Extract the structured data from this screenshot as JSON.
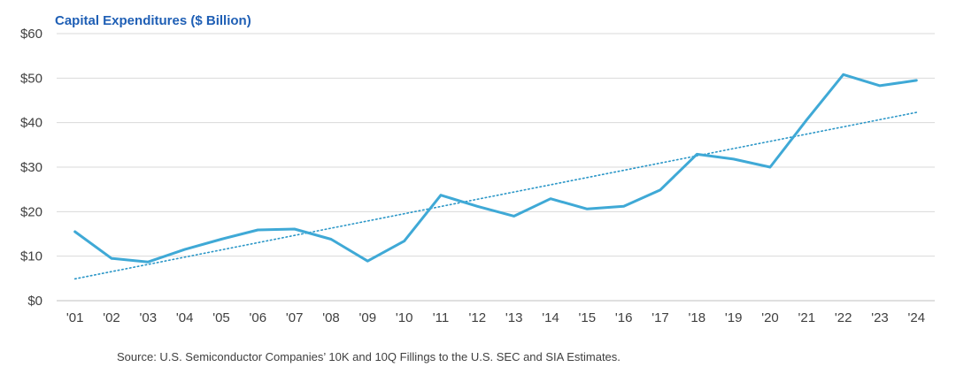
{
  "chart_data": {
    "type": "line",
    "title": "Capital Expenditures ($ Billion)",
    "source": "Source: U.S. Semiconductor Companies’ 10K and 10Q Fillings to the U.S. SEC and SIA Estimates.",
    "categories": [
      "'01",
      "'02",
      "'03",
      "'04",
      "'05",
      "'06",
      "'07",
      "'08",
      "'09",
      "'10",
      "'11",
      "'12",
      "'13",
      "'14",
      "'15",
      "'16",
      "'17",
      "'18",
      "'19",
      "'20",
      "'21",
      "'22",
      "'23",
      "'24"
    ],
    "series": [
      {
        "values": [
          15.5,
          9.5,
          8.7,
          11.5,
          13.8,
          15.9,
          16.1,
          13.8,
          8.9,
          13.4,
          23.7,
          21.2,
          19.0,
          22.9,
          20.6,
          21.2,
          24.9,
          32.9,
          31.8,
          30.0,
          40.6,
          50.8,
          48.3,
          49.5
        ],
        "color": "#3FA9D6"
      }
    ],
    "trendline": {
      "start": 4.9,
      "end": 42.3,
      "color": "#2A96C7",
      "style": "dotted"
    },
    "ylim": [
      0,
      60
    ],
    "yticks": [
      0,
      10,
      20,
      30,
      40,
      50,
      60
    ],
    "ytick_labels": [
      "$0",
      "$10",
      "$20",
      "$30",
      "$40",
      "$50",
      "$60"
    ],
    "grid": true,
    "legend": "none",
    "colors": {
      "title": "#1F5FB5",
      "grid": "#D9D9D9",
      "axis": "#BFBFBF"
    }
  }
}
